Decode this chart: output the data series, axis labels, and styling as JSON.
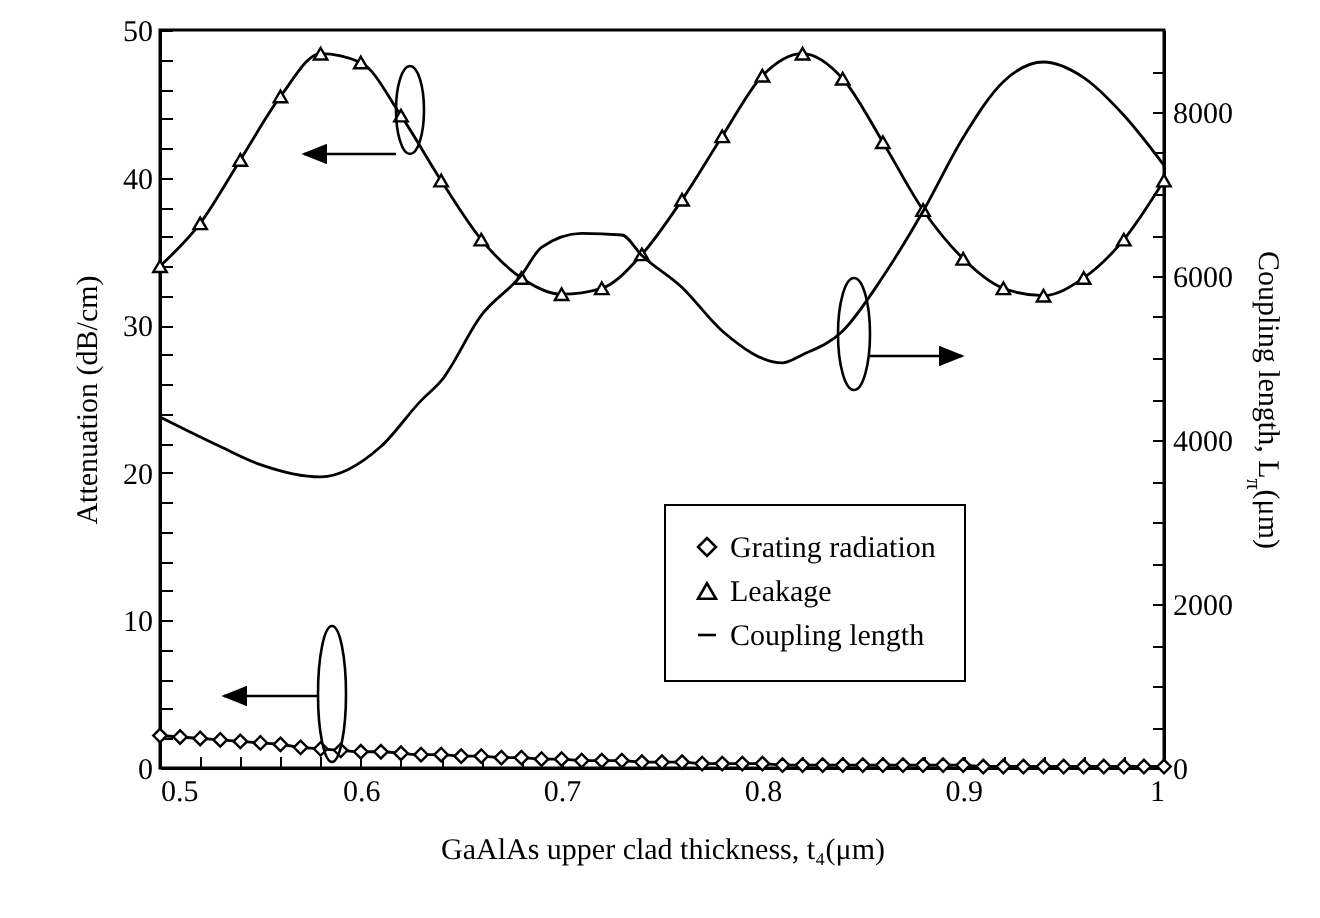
{
  "chart_data": {
    "type": "line",
    "xlabel": "GaAlAs upper clad thickness, t₄(μm)",
    "ylabel": "Attenuation (dB/cm)",
    "y2label": "Coupling length, L$_{π}$(μm)",
    "xlim": [
      0.5,
      1
    ],
    "xticks": [
      0.5,
      {
        "value": 0.52,
        "label": null
      },
      {
        "value": 0.54,
        "label": null
      },
      {
        "value": 0.56,
        "label": null
      },
      {
        "value": 0.58,
        "label": null
      },
      0.6,
      {
        "value": 0.62,
        "label": null
      },
      {
        "value": 0.64,
        "label": null
      },
      {
        "value": 0.66,
        "label": null
      },
      {
        "value": 0.68,
        "label": null
      },
      0.7,
      {
        "value": 0.72,
        "label": null
      },
      {
        "value": 0.74,
        "label": null
      },
      {
        "value": 0.76,
        "label": null
      },
      {
        "value": 0.78,
        "label": null
      },
      0.8,
      {
        "value": 0.82,
        "label": null
      },
      {
        "value": 0.84,
        "label": null
      },
      {
        "value": 0.86,
        "label": null
      },
      {
        "value": 0.88,
        "label": null
      },
      0.9,
      {
        "value": 0.92,
        "label": null
      },
      {
        "value": 0.94,
        "label": null
      },
      {
        "value": 0.96,
        "label": null
      },
      {
        "value": 0.98,
        "label": null
      },
      1
    ],
    "ylim": [
      0,
      50
    ],
    "yticks": [
      0,
      {
        "value": 2,
        "label": null
      },
      {
        "value": 4,
        "label": null
      },
      {
        "value": 6,
        "label": null
      },
      {
        "value": 8,
        "label": null
      },
      10,
      {
        "value": 12,
        "label": null
      },
      {
        "value": 14,
        "label": null
      },
      {
        "value": 16,
        "label": null
      },
      {
        "value": 18,
        "label": null
      },
      20,
      {
        "value": 22,
        "label": null
      },
      {
        "value": 24,
        "label": null
      },
      {
        "value": 26,
        "label": null
      },
      {
        "value": 28,
        "label": null
      },
      30,
      {
        "value": 32,
        "label": null
      },
      {
        "value": 34,
        "label": null
      },
      {
        "value": 36,
        "label": null
      },
      {
        "value": 38,
        "label": null
      },
      40,
      {
        "value": 42,
        "label": null
      },
      {
        "value": 44,
        "label": null
      },
      {
        "value": 46,
        "label": null
      },
      {
        "value": 48,
        "label": null
      },
      50
    ],
    "y2lim": [
      0,
      9000
    ],
    "y2ticks": [
      0,
      {
        "value": 500,
        "label": null
      },
      {
        "value": 1000,
        "label": null
      },
      {
        "value": 1500,
        "label": null
      },
      2000,
      {
        "value": 2500,
        "label": null
      },
      {
        "value": 3000,
        "label": null
      },
      {
        "value": 3500,
        "label": null
      },
      4000,
      {
        "value": 4500,
        "label": null
      },
      {
        "value": 5000,
        "label": null
      },
      {
        "value": 5500,
        "label": null
      },
      6000,
      {
        "value": 6500,
        "label": null
      },
      {
        "value": 7000,
        "label": null
      },
      {
        "value": 7500,
        "label": null
      },
      8000,
      {
        "value": 8500,
        "label": null
      }
    ],
    "legend": "bottom right",
    "grid": false,
    "series": [
      {
        "name": "Grating radiation",
        "color": "#000000",
        "marker": "diamond",
        "x": [
          0.5,
          0.51,
          0.52,
          0.53,
          0.54,
          0.55,
          0.56,
          0.57,
          0.58,
          0.59,
          0.6,
          0.61,
          0.62,
          0.63,
          0.64,
          0.65,
          0.66,
          0.67,
          0.68,
          0.69,
          0.7,
          0.71,
          0.72,
          0.73,
          0.74,
          0.75,
          0.76,
          0.77,
          0.78,
          0.79,
          0.8,
          0.81,
          0.82,
          0.83,
          0.84,
          0.85,
          0.86,
          0.87,
          0.88,
          0.89,
          0.9,
          0.91,
          0.92,
          0.93,
          0.94,
          0.95,
          0.96,
          0.97,
          0.98,
          0.99,
          1
        ],
        "values": [
          2.2,
          2.1,
          2.0,
          1.9,
          1.8,
          1.7,
          1.6,
          1.4,
          1.3,
          1.2,
          1.1,
          1.1,
          1.0,
          0.9,
          0.9,
          0.8,
          0.8,
          0.7,
          0.7,
          0.6,
          0.6,
          0.5,
          0.5,
          0.5,
          0.4,
          0.4,
          0.4,
          0.3,
          0.3,
          0.3,
          0.3,
          0.2,
          0.2,
          0.2,
          0.2,
          0.2,
          0.2,
          0.2,
          0.2,
          0.2,
          0.2,
          0.1,
          0.1,
          0.1,
          0.1,
          0.1,
          0.1,
          0.1,
          0.1,
          0.1,
          0.1
        ]
      },
      {
        "name": "Leakage",
        "color": "#000000",
        "marker": "triangle",
        "x": [
          0.5,
          0.52,
          0.54,
          0.56,
          0.58,
          0.6,
          0.62,
          0.64,
          0.66,
          0.68,
          0.7,
          0.72,
          0.74,
          0.76,
          0.78,
          0.8,
          0.82,
          0.84,
          0.86,
          0.88,
          0.9,
          0.92,
          0.94,
          0.96,
          0.98,
          1
        ],
        "values": [
          34.0,
          36.9,
          41.2,
          45.5,
          48.4,
          47.8,
          44.2,
          39.8,
          35.8,
          33.2,
          32.1,
          32.5,
          34.8,
          38.5,
          42.8,
          46.9,
          48.4,
          46.7,
          42.4,
          37.8,
          34.5,
          32.5,
          32.0,
          33.2,
          35.8,
          39.8
        ]
      },
      {
        "name": "Coupling length",
        "color": "#000000",
        "marker": "none",
        "axis": "y2",
        "x": [
          0.5,
          0.53,
          0.55,
          0.58,
          0.61,
          0.63,
          0.64,
          0.66,
          0.68,
          0.69,
          0.71,
          0.73,
          0.74,
          0.76,
          0.78,
          0.81,
          0.82,
          0.84,
          0.86,
          0.88,
          0.9,
          0.92,
          0.94,
          0.96,
          0.98,
          1
        ],
        "values": [
          4280,
          3920,
          3700,
          3550,
          3920,
          4480,
          4720,
          5520,
          6010,
          6350,
          6520,
          6500,
          6250,
          5860,
          5330,
          4940,
          5040,
          5330,
          5990,
          6790,
          7690,
          8370,
          8610,
          8420,
          7960,
          7350
        ]
      }
    ]
  }
}
